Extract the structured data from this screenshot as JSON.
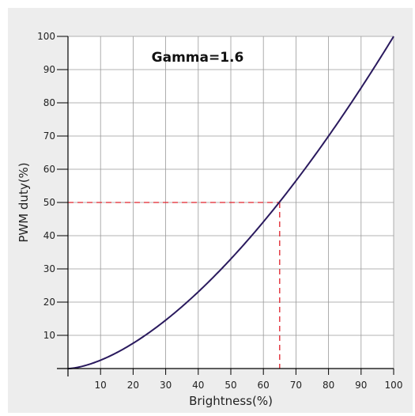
{
  "chart_data": {
    "type": "line",
    "title": "Gamma=1.6",
    "xlabel": "Brightness(%)",
    "ylabel": "PWM duty(%)",
    "xlim": [
      0,
      100
    ],
    "ylim": [
      0,
      100
    ],
    "x_ticks": [
      10,
      20,
      30,
      40,
      50,
      60,
      70,
      80,
      90,
      100
    ],
    "y_ticks": [
      10,
      20,
      30,
      40,
      50,
      60,
      70,
      80,
      90,
      100
    ],
    "grid": true,
    "gamma": 1.6,
    "series": [
      {
        "x": [
          0,
          5,
          10,
          15,
          20,
          25,
          30,
          35,
          40,
          45,
          50,
          55,
          60,
          65,
          70,
          75,
          80,
          85,
          90,
          95,
          100
        ],
        "y": [
          0,
          0.8,
          2.5,
          4.8,
          7.6,
          10.9,
          14.6,
          18.7,
          23.1,
          27.8,
          33.0,
          38.4,
          44.2,
          50.2,
          56.5,
          63.1,
          70.0,
          77.1,
          84.5,
          92.1,
          100
        ]
      }
    ],
    "reference_lines": {
      "x": 65,
      "y": 50
    },
    "colors": {
      "curve": "#2a1a5e",
      "reference": "#e0202a",
      "grid": "#9a9a9a",
      "plot_bg": "#ffffff",
      "panel_bg": "#ededed"
    }
  }
}
